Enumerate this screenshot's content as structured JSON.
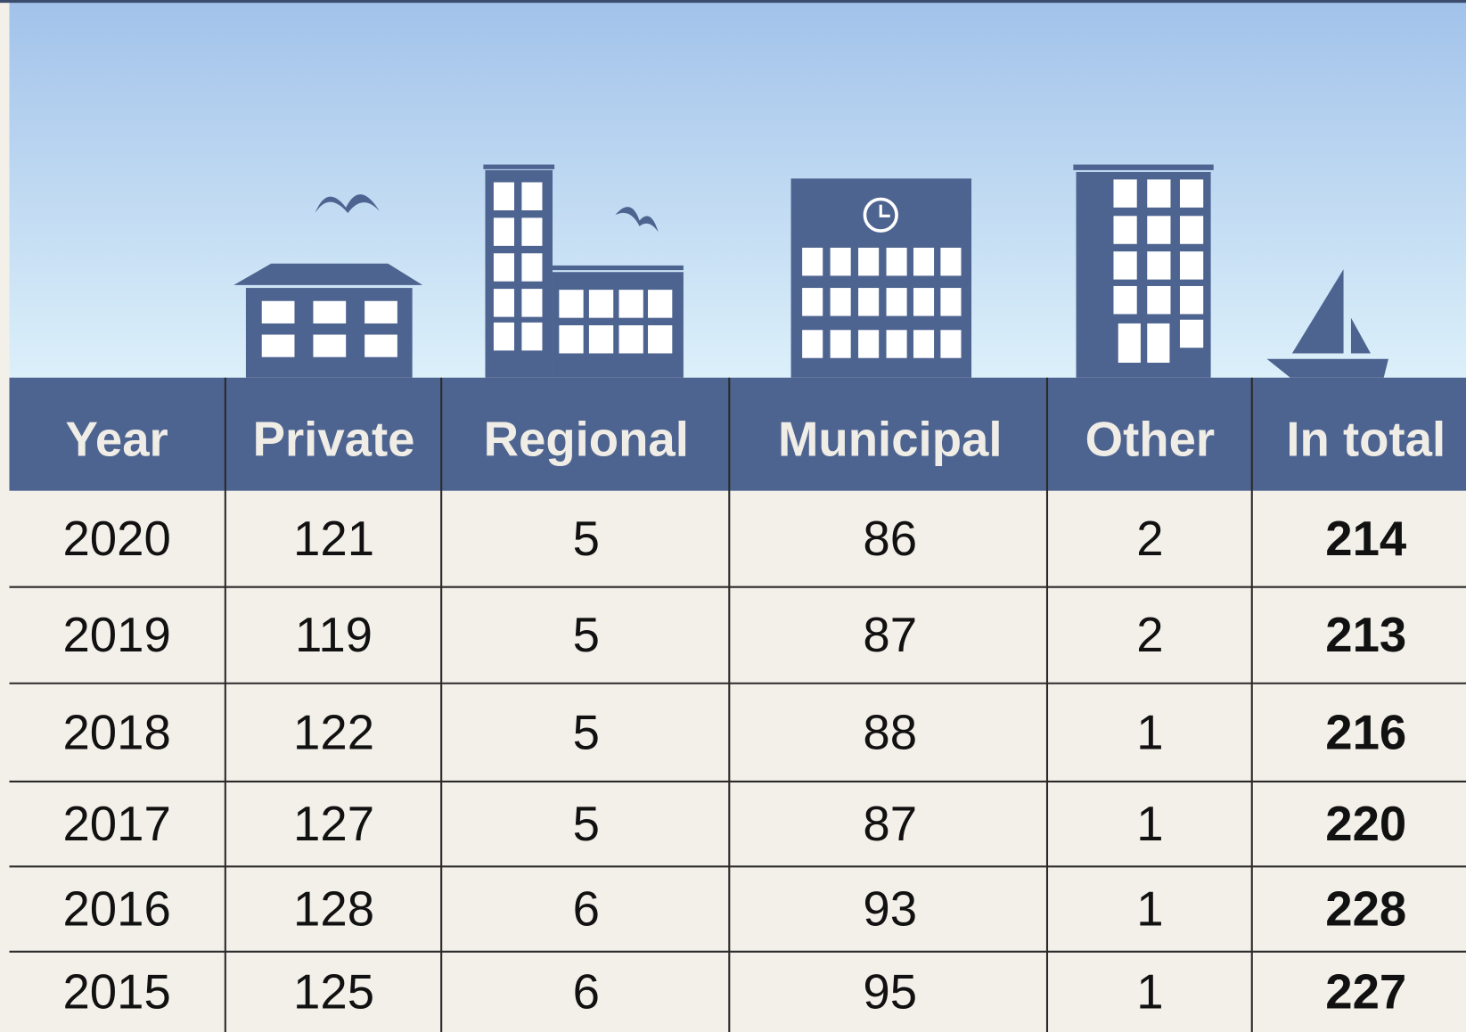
{
  "table": {
    "header": [
      "Year",
      "Private",
      "Regional",
      "Municipal",
      "Other",
      "In total"
    ],
    "rows": [
      [
        "2020",
        "121",
        "5",
        "86",
        "2",
        "214"
      ],
      [
        "2019",
        "119",
        "5",
        "87",
        "2",
        "213"
      ],
      [
        "2018",
        "122",
        "5",
        "88",
        "1",
        "216"
      ],
      [
        "2017",
        "127",
        "5",
        "87",
        "1",
        "220"
      ],
      [
        "2016",
        "128",
        "6",
        "93",
        "1",
        "228"
      ],
      [
        "2015",
        "125",
        "6",
        "95",
        "1",
        "227"
      ]
    ]
  }
}
